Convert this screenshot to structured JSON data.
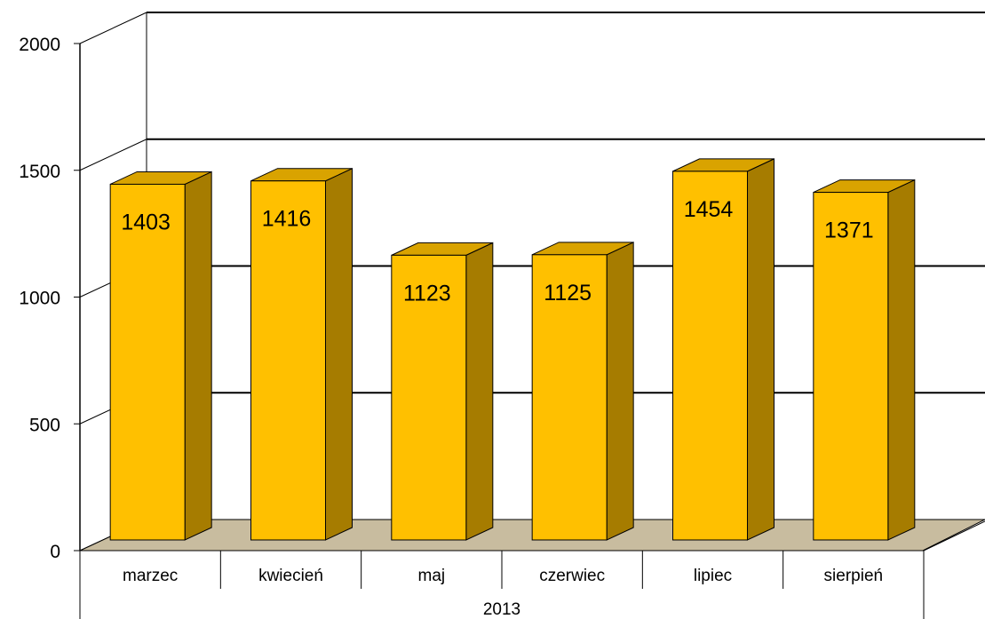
{
  "chart_data": {
    "type": "bar",
    "categories": [
      "marzec",
      "kwiecień",
      "maj",
      "czerwiec",
      "lipiec",
      "sierpień"
    ],
    "values": [
      1403,
      1416,
      1123,
      1125,
      1454,
      1371
    ],
    "group_label": "2013",
    "yticks": [
      "0",
      "500",
      "1000",
      "1500",
      "2000"
    ],
    "ylim": [
      0,
      2000
    ],
    "grid": true,
    "three_d": true,
    "colors": {
      "bar_front": "#FFC000",
      "bar_side": "#A67C00",
      "bar_top": "#D9A300",
      "floor": "#C8BC9F",
      "gridline": "#000000"
    }
  }
}
